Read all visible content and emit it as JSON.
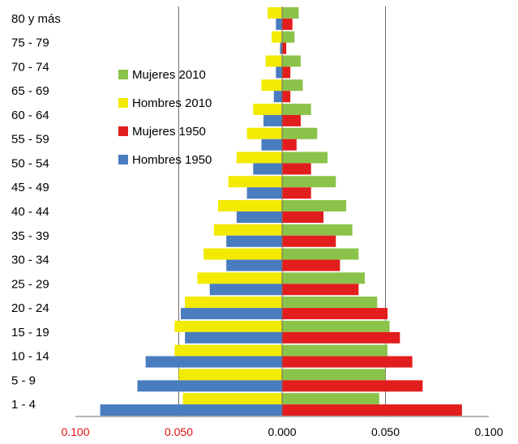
{
  "chart_data": {
    "type": "bar",
    "orientation": "horizontal-population-pyramid",
    "categories": [
      "80 y más",
      "75 - 79",
      "70 - 74",
      "65 - 69",
      "60 - 64",
      "55 - 59",
      "50 - 54",
      "45 - 49",
      "40 - 44",
      "35 - 39",
      "30 - 34",
      "25 - 29",
      "20 - 24",
      "15 - 19",
      "10 - 14",
      "5 - 9",
      "1 - 4"
    ],
    "series": [
      {
        "name": "Mujeres 2010",
        "color": "#8bc34a",
        "side": "right",
        "values": [
          0.008,
          0.006,
          0.009,
          0.01,
          0.014,
          0.017,
          0.022,
          0.026,
          0.031,
          0.034,
          0.037,
          0.04,
          0.046,
          0.052,
          0.051,
          0.05,
          0.047
        ]
      },
      {
        "name": "Hombres 2010",
        "color": "#f2ea00",
        "side": "left",
        "values": [
          0.007,
          0.005,
          0.008,
          0.01,
          0.014,
          0.017,
          0.022,
          0.026,
          0.031,
          0.033,
          0.038,
          0.041,
          0.047,
          0.052,
          0.052,
          0.05,
          0.048
        ]
      },
      {
        "name": "Mujeres 1950",
        "color": "#e21d1d",
        "side": "right",
        "values": [
          0.005,
          0.002,
          0.004,
          0.004,
          0.009,
          0.007,
          0.014,
          0.014,
          0.02,
          0.026,
          0.028,
          0.037,
          0.051,
          0.057,
          0.063,
          0.068,
          0.087
        ]
      },
      {
        "name": "Hombres 1950",
        "color": "#4a7cc0",
        "side": "left",
        "values": [
          0.003,
          0.001,
          0.003,
          0.004,
          0.009,
          0.01,
          0.014,
          0.017,
          0.022,
          0.027,
          0.027,
          0.035,
          0.049,
          0.047,
          0.066,
          0.07,
          0.088
        ]
      }
    ],
    "x_tick_labels": [
      "0.100",
      "0.050",
      "0.000",
      "0.050",
      "0.100"
    ],
    "x_tick_colors": [
      "#e01010",
      "#e01010",
      "#000000",
      "#000000",
      "#000000"
    ],
    "xlim": [
      -0.1,
      0.1
    ],
    "grid": "vertical lines at ticks",
    "legend_position": "left",
    "xlabel": "",
    "ylabel": "",
    "title": ""
  }
}
